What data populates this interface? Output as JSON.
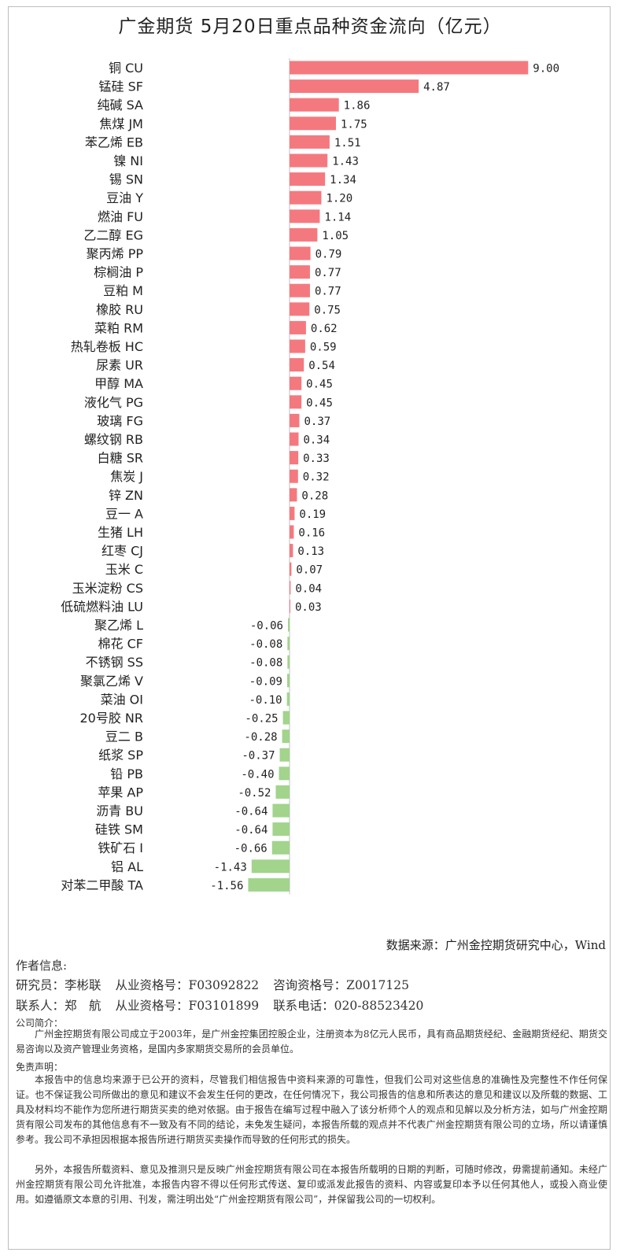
{
  "chart_data": {
    "type": "bar",
    "orientation": "horizontal",
    "title": "广金期货 5月20日重点品种资金流向（亿元）",
    "categories": [
      "铜 CU",
      "锰硅 SF",
      "纯碱 SA",
      "焦煤 JM",
      "苯乙烯 EB",
      "镍 NI",
      "锡 SN",
      "豆油 Y",
      "燃油 FU",
      "乙二醇 EG",
      "聚丙烯 PP",
      "棕榈油 P",
      "豆粕 M",
      "橡胶 RU",
      "菜粕 RM",
      "热轧卷板 HC",
      "尿素 UR",
      "甲醇 MA",
      "液化气 PG",
      "玻璃 FG",
      "螺纹钢 RB",
      "白糖 SR",
      "焦炭 J",
      "锌 ZN",
      "豆一 A",
      "生猪 LH",
      "红枣 CJ",
      "玉米 C",
      "玉米淀粉 CS",
      "低硫燃料油 LU",
      "聚乙烯 L",
      "棉花 CF",
      "不锈钢 SS",
      "聚氯乙烯 V",
      "菜油 OI",
      "20号胶 NR",
      "豆二 B",
      "纸浆 SP",
      "铅 PB",
      "苹果 AP",
      "沥青 BU",
      "硅铁 SM",
      "铁矿石 I",
      "铝 AL",
      "对苯二甲酸 TA"
    ],
    "values": [
      9.0,
      4.87,
      1.86,
      1.75,
      1.51,
      1.43,
      1.34,
      1.2,
      1.14,
      1.05,
      0.79,
      0.77,
      0.77,
      0.75,
      0.62,
      0.59,
      0.54,
      0.45,
      0.45,
      0.37,
      0.34,
      0.33,
      0.32,
      0.28,
      0.19,
      0.16,
      0.13,
      0.07,
      0.04,
      0.03,
      -0.06,
      -0.08,
      -0.08,
      -0.09,
      -0.1,
      -0.25,
      -0.28,
      -0.37,
      -0.4,
      -0.52,
      -0.64,
      -0.64,
      -0.66,
      -1.43,
      -1.56
    ],
    "value_labels": [
      "9.00",
      "4.87",
      "1.86",
      "1.75",
      "1.51",
      "1.43",
      "1.34",
      "1.20",
      "1.14",
      "1.05",
      "0.79",
      "0.77",
      "0.77",
      "0.75",
      "0.62",
      "0.59",
      "0.54",
      "0.45",
      "0.45",
      "0.37",
      "0.34",
      "0.33",
      "0.32",
      "0.28",
      "0.19",
      "0.16",
      "0.13",
      "0.07",
      "0.04",
      "0.03",
      "-0.06",
      "-0.08",
      "-0.08",
      "-0.09",
      "-0.10",
      "-0.25",
      "-0.28",
      "-0.37",
      "-0.40",
      "-0.52",
      "-0.64",
      "-0.64",
      "-0.66",
      "-1.43",
      "-1.56"
    ],
    "colors": {
      "positive": "#f4797f",
      "negative": "#a2d48c",
      "axis": "#bfbfbf"
    },
    "grid": false,
    "legend": "none"
  },
  "source": "数据来源：广州金控期货研究中心，Wind",
  "author": {
    "heading": "作者信息:",
    "analyst_label": "研究员：李彬联",
    "analyst_qual": "从业资格号：F03092822",
    "analyst_consult": "咨询资格号：Z0017125",
    "contact_label": "联系人：郑　航",
    "contact_qual": "从业资格号：F03101899",
    "contact_phone": "联系电话：020-88523420"
  },
  "company": {
    "heading": "公司简介：",
    "text": "广州金控期货有限公司成立于2003年，是广州金控集团控股企业，注册资本为8亿元人民币，具有商品期货经纪、金融期货经纪、期货交易咨询以及资产管理业务资格，是国内多家期货交易所的会员单位。"
  },
  "disclaimer": {
    "heading": "免责声明：",
    "p1": "本报告中的信息均来源于已公开的资料，尽管我们相信报告中资料来源的可靠性，但我们公司对这些信息的准确性及完整性不作任何保证。也不保证我公司所做出的意见和建议不会发生任何的更改，在任何情况下，我公司报告的信息和所表达的意见和建议以及所载的数据、工具及材料均不能作为您所进行期货买卖的绝对依据。由于报告在编写过程中融入了该分析师个人的观点和见解以及分析方法，如与广州金控期货有限公司发布的其他信息有不一致及有不同的结论，未免发生疑问，本报告所载的观点并不代表广州金控期货有限公司的立场，所以请谨慎参考。我公司不承担因根据本报告所进行期货买卖操作而导致的任何形式的损失。",
    "p2": "另外，本报告所载资料、意见及推测只是反映广州金控期货有限公司在本报告所载明的日期的判断，可随时修改，毋需提前通知。未经广州金控期货有限公司允许批准，本报告内容不得以任何形式传送、复印或派发此报告的资料、内容或复印本予以任何其他人，或投入商业使用。如遵循原文本意的引用、刊发，需注明出处“广州金控期货有限公司”，并保留我公司的一切权利。"
  }
}
